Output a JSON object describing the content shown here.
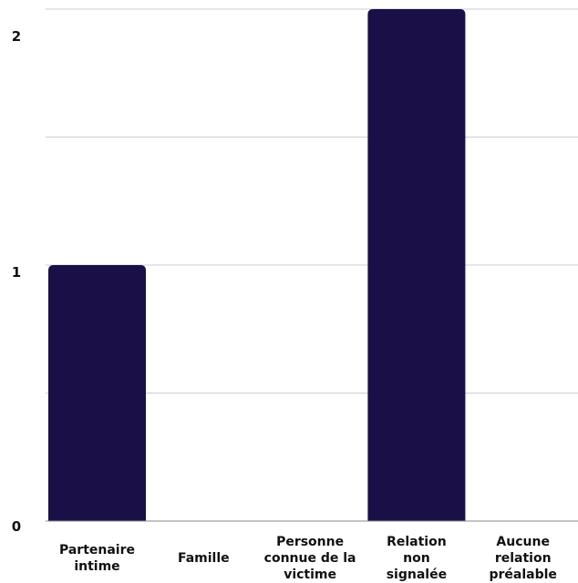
{
  "chart_data": {
    "type": "bar",
    "categories": [
      [
        "Partenaire",
        "intime"
      ],
      [
        "Famille"
      ],
      [
        "Personne",
        "connue de la",
        "victime"
      ],
      [
        "Relation",
        "non",
        "signalée"
      ],
      [
        "Aucune",
        "relation",
        "préalable"
      ]
    ],
    "values": [
      1,
      0,
      0,
      2,
      0
    ],
    "ylim": [
      0,
      2
    ],
    "y_tick_labels": [
      "0",
      "1",
      "2"
    ],
    "gridlines": [
      0.5,
      1,
      1.5,
      2
    ],
    "grid": true,
    "bar_color": "#1a0f47",
    "grid_color": "#cccccc",
    "axis_color": "#888888"
  }
}
